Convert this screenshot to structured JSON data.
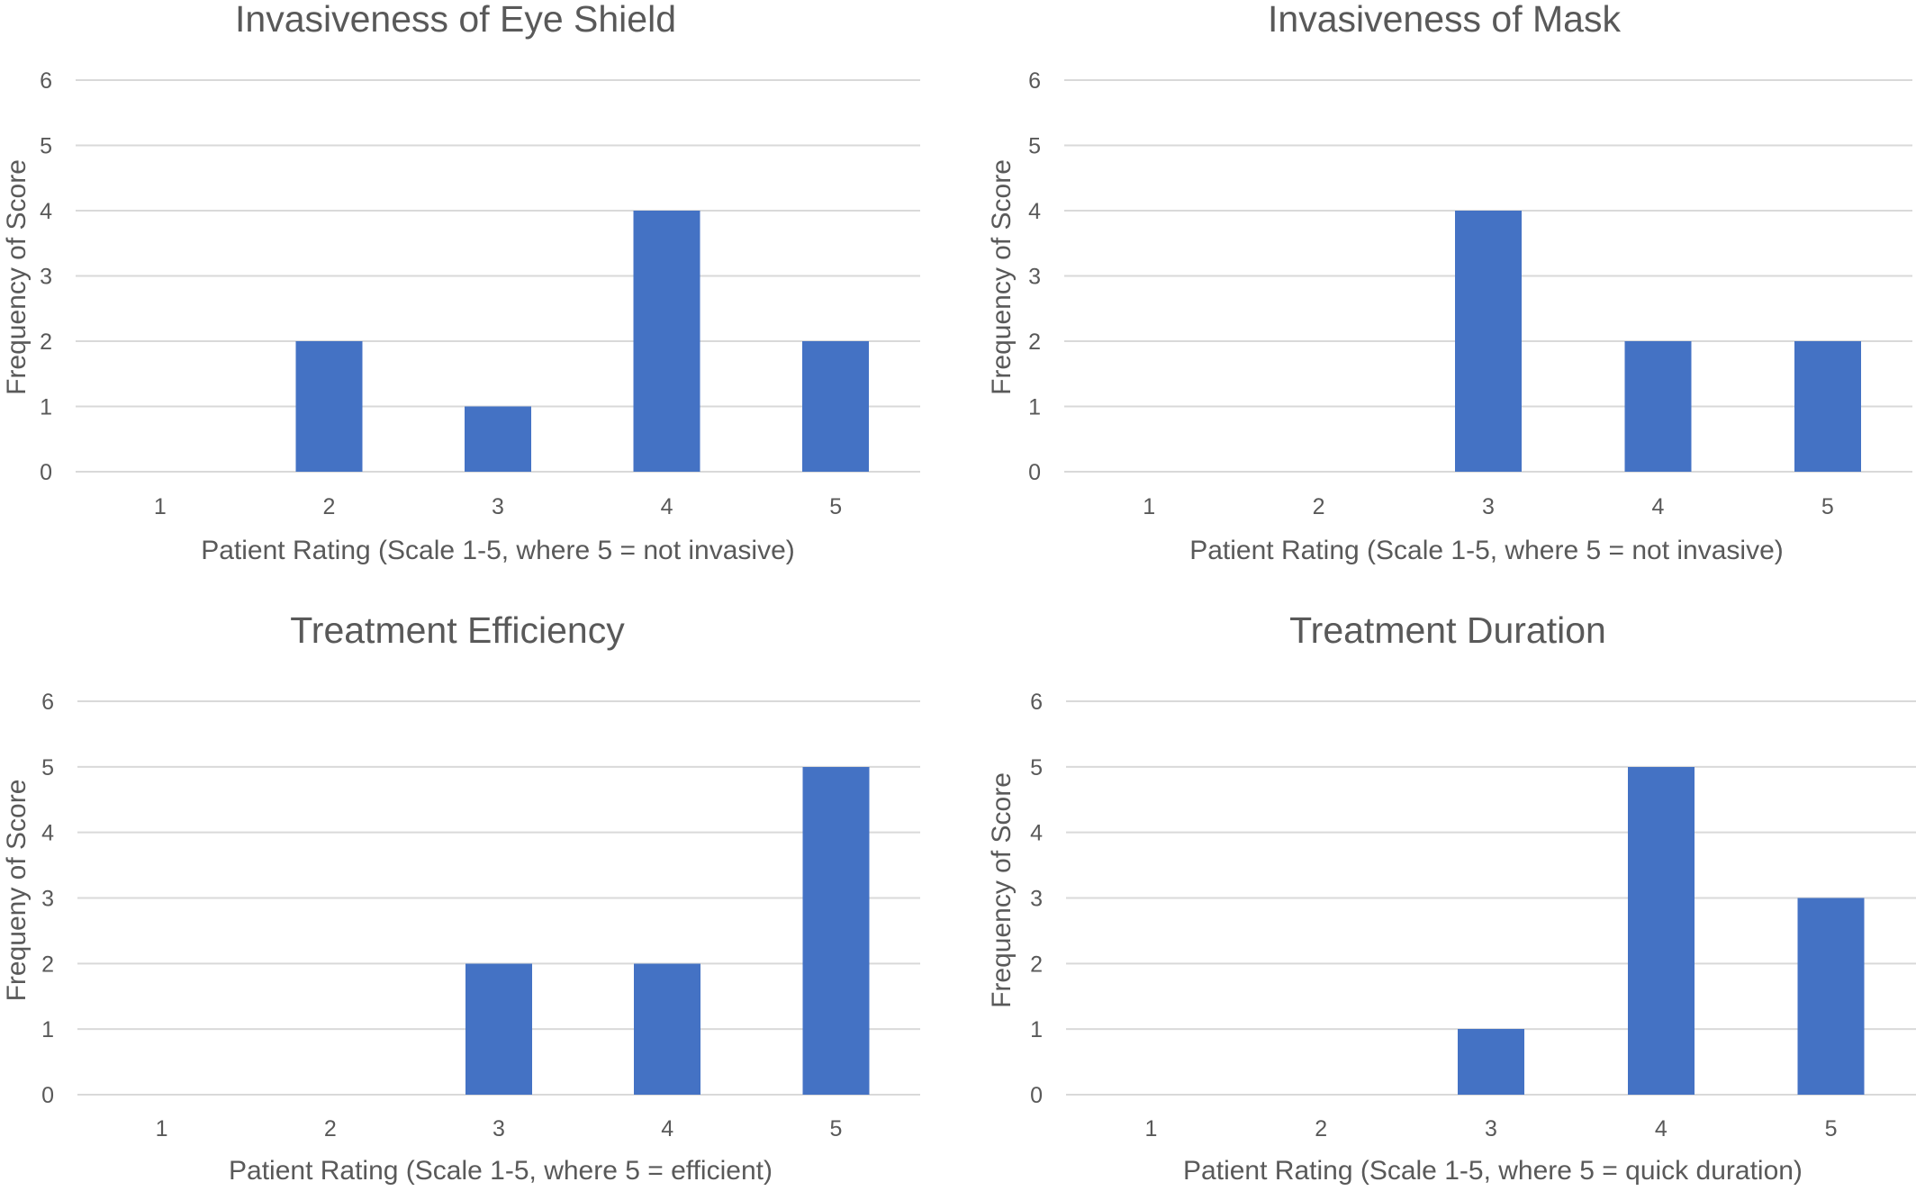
{
  "colors": {
    "bar": "#4472c4",
    "text": "#595959",
    "grid": "#d9d9d9",
    "background": "#ffffff"
  },
  "chart_data": [
    {
      "type": "bar",
      "title": "Invasiveness of Eye Shield",
      "xlabel": "Patient Rating (Scale 1-5, where 5 = not invasive)",
      "ylabel": "Frequency of Score",
      "categories": [
        "1",
        "2",
        "3",
        "4",
        "5"
      ],
      "values": [
        0,
        2,
        1,
        4,
        2
      ],
      "ylim": [
        0,
        6
      ],
      "yticks": [
        "0",
        "1",
        "2",
        "3",
        "4",
        "5",
        "6"
      ],
      "grid": true,
      "legend": "none"
    },
    {
      "type": "bar",
      "title": "Invasiveness of Mask",
      "xlabel": "Patient Rating (Scale 1-5, where 5 = not invasive)",
      "ylabel": "Frequency of Score",
      "categories": [
        "1",
        "2",
        "3",
        "4",
        "5"
      ],
      "values": [
        0,
        0,
        4,
        2,
        2
      ],
      "ylim": [
        0,
        6
      ],
      "yticks": [
        "0",
        "1",
        "2",
        "3",
        "4",
        "5",
        "6"
      ],
      "grid": true,
      "legend": "none"
    },
    {
      "type": "bar",
      "title": "Treatment Efficiency",
      "xlabel": "Patient Rating (Scale 1-5, where 5 = efficient)",
      "ylabel": "Frequeny of Score",
      "categories": [
        "1",
        "2",
        "3",
        "4",
        "5"
      ],
      "values": [
        0,
        0,
        2,
        2,
        5
      ],
      "ylim": [
        0,
        6
      ],
      "yticks": [
        "0",
        "1",
        "2",
        "3",
        "4",
        "5",
        "6"
      ],
      "grid": true,
      "legend": "none"
    },
    {
      "type": "bar",
      "title": "Treatment Duration",
      "xlabel": "Patient Rating (Scale 1-5, where 5 = quick duration)",
      "ylabel": "Frequency of Score",
      "categories": [
        "1",
        "2",
        "3",
        "4",
        "5"
      ],
      "values": [
        0,
        0,
        1,
        5,
        3
      ],
      "ylim": [
        0,
        6
      ],
      "yticks": [
        "0",
        "1",
        "2",
        "3",
        "4",
        "5",
        "6"
      ],
      "grid": true,
      "legend": "none"
    }
  ]
}
